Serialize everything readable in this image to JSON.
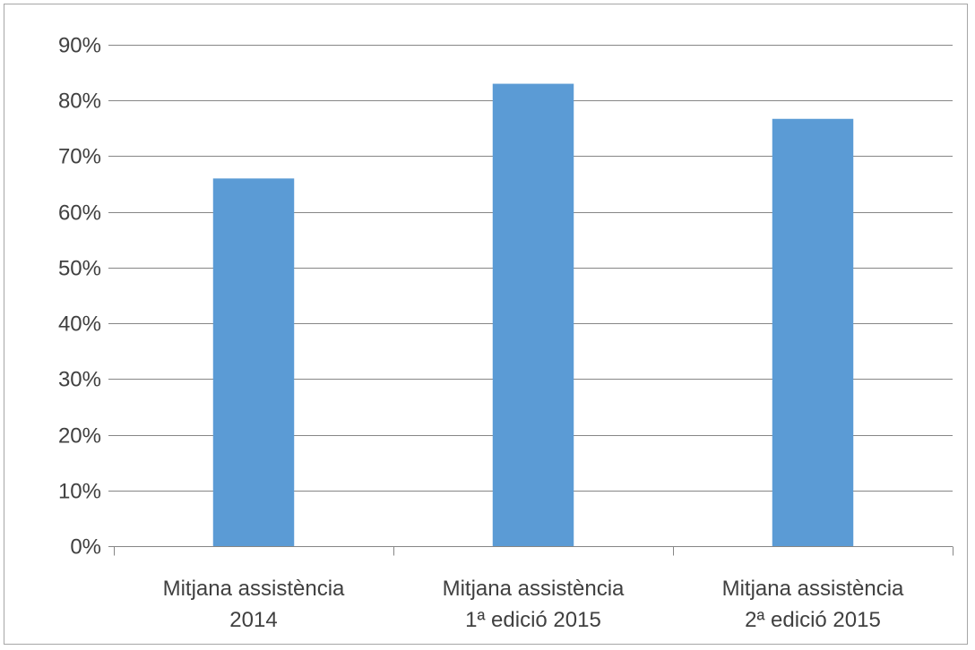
{
  "chart_data": {
    "type": "bar",
    "categories": [
      [
        "Mitjana assistència",
        "2014"
      ],
      [
        "Mitjana assistència",
        "1ª edició 2015"
      ],
      [
        "Mitjana assistència",
        "2ª edició 2015"
      ]
    ],
    "values": [
      0.66,
      0.83,
      0.767
    ],
    "value_format": "percent",
    "title": "",
    "xlabel": "",
    "ylabel": "",
    "ylim": [
      0,
      0.9
    ],
    "yticks": [
      0,
      0.1,
      0.2,
      0.3,
      0.4,
      0.5,
      0.6,
      0.7,
      0.8,
      0.9
    ],
    "ytick_labels": [
      "0%",
      "10%",
      "20%",
      "30%",
      "40%",
      "50%",
      "60%",
      "70%",
      "80%",
      "90%"
    ],
    "grid": true,
    "legend": "none",
    "colors": {
      "bar": "#5b9bd5",
      "grid": "#868686",
      "axis": "#868686",
      "text": "#404040"
    }
  }
}
